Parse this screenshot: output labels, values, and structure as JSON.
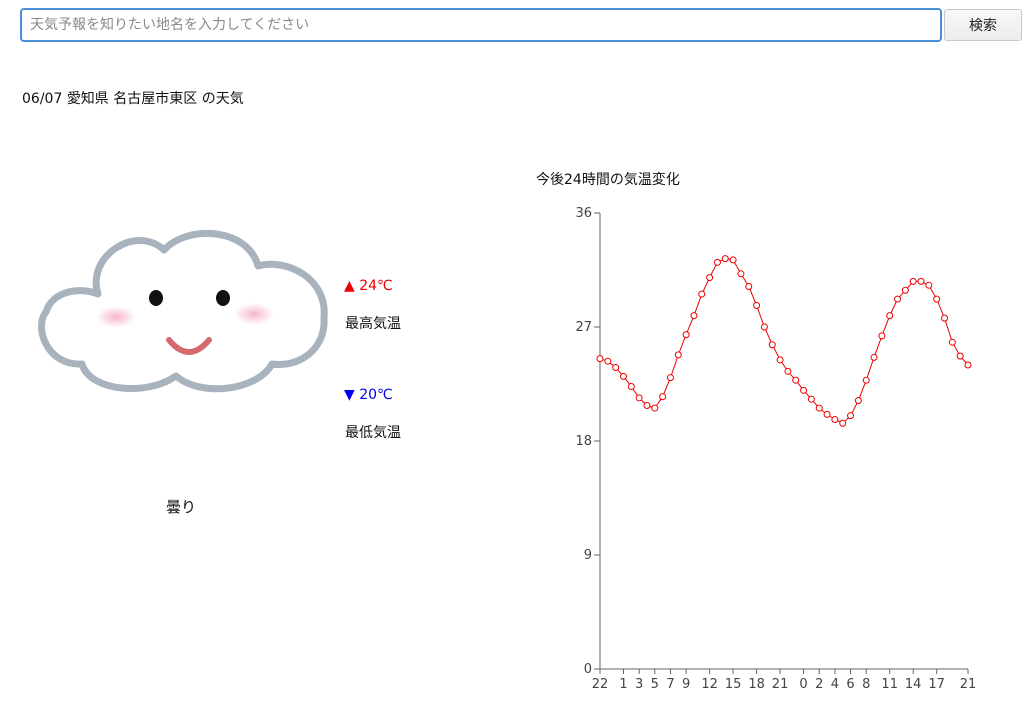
{
  "search": {
    "placeholder": "天気予報を知りたい地名を入力してください",
    "value": "",
    "button_label": "検索"
  },
  "forecast": {
    "date": "06/07",
    "location": "愛知県 名古屋市東区",
    "title_suffix": "の天気",
    "condition": "曇り",
    "icon": "smiling-cloud-icon",
    "high": {
      "arrow": "▲",
      "value": "24℃",
      "label": "最高気温",
      "color": "#ee0000"
    },
    "low": {
      "arrow": "▼",
      "value": "20℃",
      "label": "最低気温",
      "color": "#0000ee"
    }
  },
  "chart_data": {
    "type": "line",
    "title": "今後24時間の気温変化",
    "xlabel": "",
    "ylabel": "",
    "ylim": [
      0,
      36
    ],
    "yticks": [
      0,
      9,
      18,
      27,
      36
    ],
    "x_tick_labels": [
      "22",
      "1",
      "3",
      "5",
      "7",
      "9",
      "12",
      "15",
      "18",
      "21",
      "0",
      "2",
      "4",
      "6",
      "8",
      "11",
      "14",
      "17",
      "21"
    ],
    "x_tick_indices": [
      0,
      3,
      5,
      7,
      9,
      11,
      14,
      17,
      20,
      23,
      26,
      28,
      30,
      32,
      34,
      37,
      40,
      43,
      47
    ],
    "grid": false,
    "legend": "none",
    "color": "#ee0000",
    "series": [
      {
        "values": [
          24.5,
          24.3,
          23.8,
          23.1,
          22.3,
          21.4,
          20.8,
          20.6,
          21.5,
          23.0,
          24.8,
          26.4,
          27.9,
          29.6,
          30.9,
          32.1,
          32.4,
          32.3,
          31.2,
          30.2,
          28.7,
          27.0,
          25.6,
          24.4,
          23.5,
          22.8,
          22.0,
          21.3,
          20.6,
          20.1,
          19.7,
          19.4,
          20.0,
          21.2,
          22.8,
          24.6,
          26.3,
          27.9,
          29.2,
          29.9,
          30.6,
          30.6,
          30.3,
          29.2,
          27.7,
          25.8,
          24.7,
          24.0
        ]
      }
    ]
  }
}
